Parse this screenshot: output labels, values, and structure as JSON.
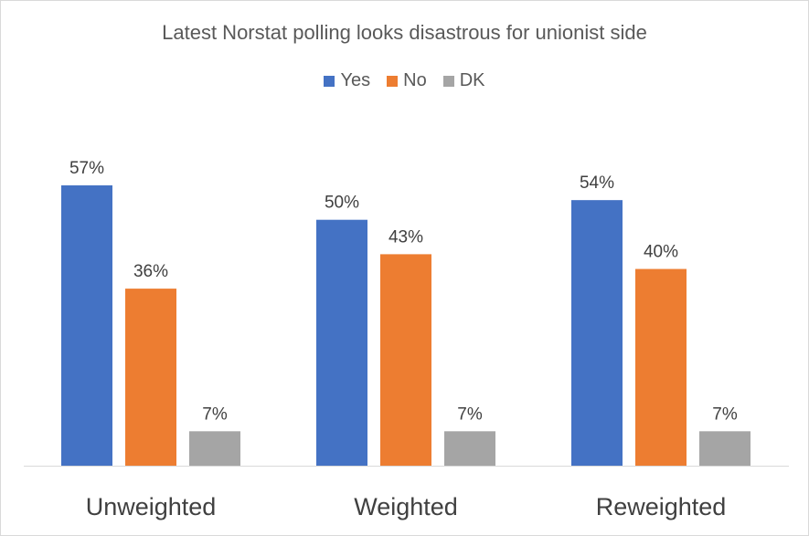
{
  "chart_data": {
    "type": "bar",
    "title": "Latest Norstat polling looks disastrous for unionist side",
    "categories": [
      "Unweighted",
      "Weighted",
      "Reweighted"
    ],
    "series": [
      {
        "name": "Yes",
        "color": "#4472C4",
        "values": [
          57,
          50,
          54
        ],
        "labels": [
          "57%",
          "50%",
          "54%"
        ]
      },
      {
        "name": "No",
        "color": "#ED7D31",
        "values": [
          36,
          43,
          40
        ],
        "labels": [
          "36%",
          "43%",
          "40%"
        ]
      },
      {
        "name": "DK",
        "color": "#A5A5A5",
        "values": [
          7,
          7,
          7
        ],
        "labels": [
          "7%",
          "7%",
          "7%"
        ]
      }
    ],
    "ylim": [
      0,
      60
    ],
    "grid": false,
    "legend_position": "top",
    "axis_color": "#d9d9d9",
    "label_color": "#404040"
  }
}
